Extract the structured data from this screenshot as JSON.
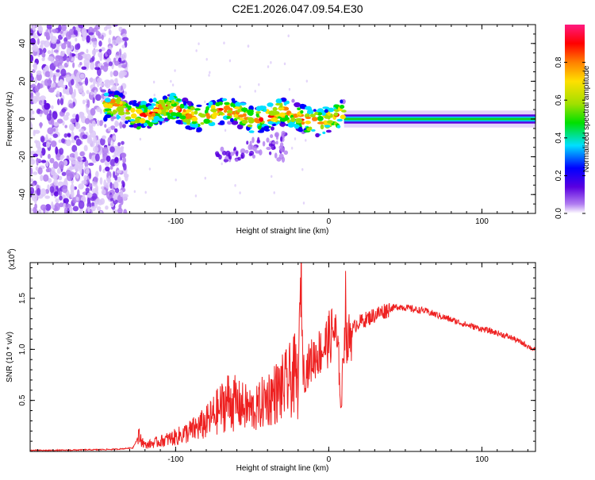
{
  "title": "C2E1.2026.047.09.54.E30",
  "chart_data": [
    {
      "type": "heatmap",
      "name": "spectrogram",
      "xlabel": "Height of straight line (km)",
      "ylabel": "Frequency (Hz)",
      "xlim": [
        -195,
        135
      ],
      "ylim": [
        -50,
        50
      ],
      "xticks": [
        -100,
        0,
        100
      ],
      "xtick_labels": [
        "-100",
        "0",
        "100"
      ],
      "yticks": [
        -40,
        -20,
        0,
        20,
        40
      ],
      "ytick_labels": [
        "-40",
        "-20",
        "0",
        "20",
        "40"
      ],
      "colorbar": {
        "label": "Normalized spectral amplitude",
        "range": [
          0,
          1
        ],
        "ticks": [
          0.0,
          0.2,
          0.4,
          0.6,
          0.8
        ],
        "tick_labels": [
          "0.0",
          "0.2",
          "0.4",
          "0.6",
          "0.8"
        ],
        "colors": [
          "#ffffff",
          "#b07cf0",
          "#5a00e0",
          "#0000ff",
          "#00e0ff",
          "#00e000",
          "#a0e000",
          "#ffe000",
          "#ff8000",
          "#ff0000",
          "#ff1a80"
        ]
      },
      "regions": [
        {
          "name": "noise-scatter",
          "x": [
            -195,
            -132
          ],
          "y": [
            -50,
            50
          ],
          "amplitude": 0.15
        },
        {
          "name": "echo-band",
          "x": [
            -147,
            10
          ],
          "y_center": [
            5,
            0
          ],
          "halfwidth": 7,
          "amplitude": 0.55
        },
        {
          "name": "trail-line",
          "x": [
            10,
            135
          ],
          "y_center": 0,
          "halfwidth": 1.5,
          "amplitude": 0.6
        },
        {
          "name": "drift-tail",
          "x": [
            -75,
            -28
          ],
          "y": [
            -22,
            -6
          ],
          "amplitude": 0.15
        }
      ]
    },
    {
      "type": "line",
      "name": "snr-profile",
      "xlabel": "Height of straight line (km)",
      "ylabel": "SNR (10 * v/v)",
      "y_multiplier": "(x10^4)",
      "y_multiplier_base": "(x10",
      "y_multiplier_exp": "4",
      "y_multiplier_close": ")",
      "xlim": [
        -195,
        135
      ],
      "ylim": [
        0,
        18500
      ],
      "xticks": [
        -100,
        0,
        100
      ],
      "xtick_labels": [
        "-100",
        "0",
        "100"
      ],
      "yticks": [
        5000,
        10000,
        15000
      ],
      "ytick_labels": [
        "0.5",
        "1.0",
        "1.5"
      ],
      "color": "#ee2020",
      "series": [
        {
          "name": "SNR",
          "x": [
            -195,
            -180,
            -160,
            -140,
            -128,
            -124,
            -120,
            -110,
            -100,
            -90,
            -80,
            -72,
            -66,
            -60,
            -54,
            -48,
            -42,
            -38,
            -34,
            -30,
            -26,
            -22,
            -20,
            -18,
            -17,
            -16,
            -14,
            -12,
            -8,
            -4,
            0,
            4,
            7,
            8,
            10,
            11,
            12,
            14,
            18,
            25,
            32,
            40,
            46,
            50,
            56,
            62,
            70,
            80,
            90,
            100,
            110,
            120,
            128,
            135
          ],
          "y": [
            100,
            100,
            150,
            200,
            350,
            1500,
            600,
            1000,
            1400,
            2000,
            2800,
            4000,
            5000,
            4600,
            4300,
            4000,
            5000,
            5400,
            5800,
            6200,
            6800,
            7500,
            6500,
            18500,
            9000,
            7500,
            8200,
            8800,
            9500,
            10000,
            11000,
            12000,
            8000,
            3800,
            11000,
            15000,
            10200,
            11500,
            12500,
            13000,
            13500,
            14000,
            14200,
            14100,
            13900,
            13800,
            13400,
            12900,
            12400,
            12000,
            11600,
            11100,
            10500,
            9900
          ]
        }
      ]
    }
  ]
}
